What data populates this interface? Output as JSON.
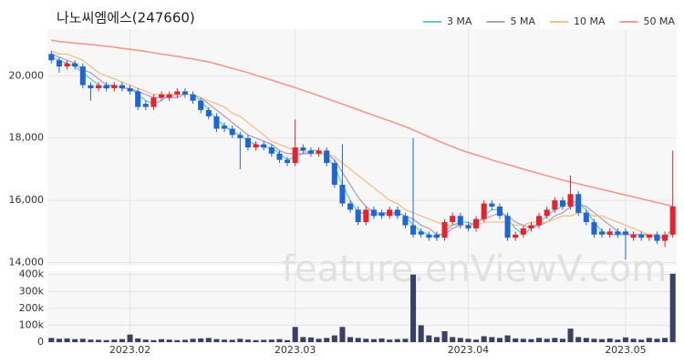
{
  "chart_data": {
    "type": "candlestick",
    "title": "나노씨엠에스(247660)",
    "watermark": "feature.enViewV.com",
    "legend": "top-right",
    "grid": true,
    "up_color": "#e8212e",
    "down_color": "#1e66d6",
    "categories": [
      null,
      null,
      null,
      null,
      null,
      null,
      null,
      null,
      null,
      null,
      "2023.02",
      null,
      null,
      null,
      null,
      null,
      null,
      null,
      null,
      null,
      null,
      null,
      null,
      null,
      null,
      null,
      null,
      null,
      null,
      null,
      null,
      "2023.03",
      null,
      null,
      null,
      null,
      null,
      null,
      null,
      null,
      null,
      null,
      null,
      null,
      null,
      null,
      null,
      null,
      null,
      null,
      null,
      null,
      null,
      "2023.04",
      null,
      null,
      null,
      null,
      null,
      null,
      null,
      null,
      null,
      null,
      null,
      null,
      null,
      null,
      null,
      null,
      null,
      null,
      null,
      "2023.05",
      null,
      null,
      null,
      null,
      null,
      null
    ],
    "open": [
      20700,
      20500,
      20300,
      20400,
      20300,
      19700,
      19600,
      19700,
      19600,
      19700,
      19600,
      19500,
      19100,
      19000,
      19300,
      19300,
      19400,
      19500,
      19400,
      19200,
      18900,
      18700,
      18400,
      18300,
      18100,
      18000,
      17700,
      17800,
      17700,
      17500,
      17300,
      17200,
      17700,
      17600,
      17500,
      17600,
      17200,
      16500,
      15900,
      15700,
      15300,
      15700,
      15600,
      15500,
      15700,
      15500,
      15200,
      15000,
      14900,
      14900,
      14800,
      15300,
      15500,
      15200,
      15100,
      15400,
      15900,
      15800,
      15500,
      14800,
      14900,
      15100,
      15200,
      15500,
      15700,
      16000,
      15800,
      16200,
      15600,
      15300,
      15000,
      14900,
      15000,
      15000,
      14800,
      14900,
      14800,
      14900,
      14700,
      14900
    ],
    "high": [
      20800,
      20600,
      20500,
      20500,
      20400,
      19800,
      19800,
      19800,
      19800,
      19800,
      19700,
      19600,
      19200,
      19400,
      19500,
      19500,
      19600,
      19600,
      19500,
      19300,
      19000,
      18800,
      18500,
      18400,
      18200,
      18100,
      17900,
      17900,
      17800,
      17600,
      17400,
      18600,
      17800,
      17700,
      17700,
      17700,
      17300,
      17800,
      16000,
      15800,
      15800,
      15800,
      15700,
      15800,
      15800,
      15600,
      18000,
      15100,
      15000,
      15000,
      15400,
      15600,
      15600,
      15300,
      15500,
      16000,
      16000,
      15900,
      15600,
      15000,
      15200,
      15300,
      15600,
      15800,
      16100,
      16100,
      16800,
      16300,
      15700,
      15400,
      15100,
      15100,
      15100,
      15100,
      15000,
      15000,
      14900,
      15000,
      15000,
      17600
    ],
    "low": [
      20400,
      20100,
      20200,
      20200,
      19600,
      19200,
      19500,
      19500,
      19500,
      19500,
      19400,
      18900,
      18900,
      18900,
      19200,
      19200,
      19300,
      19300,
      19100,
      18800,
      18600,
      18200,
      18200,
      18000,
      17000,
      17600,
      17600,
      17600,
      17400,
      17200,
      17100,
      17100,
      17500,
      17400,
      17400,
      17100,
      16400,
      15800,
      15600,
      15200,
      15200,
      15400,
      15400,
      15400,
      15400,
      15100,
      14800,
      14800,
      14700,
      14700,
      14700,
      15200,
      15100,
      15000,
      15000,
      15300,
      15700,
      15400,
      14700,
      14700,
      14800,
      15000,
      15100,
      15400,
      15600,
      15700,
      15700,
      15500,
      15200,
      14800,
      14800,
      14800,
      14800,
      14100,
      14700,
      14700,
      14700,
      14600,
      14500,
      14800
    ],
    "close": [
      20500,
      20300,
      20400,
      20300,
      19700,
      19600,
      19700,
      19600,
      19700,
      19600,
      19500,
      19000,
      19000,
      19300,
      19400,
      19400,
      19500,
      19400,
      19200,
      18900,
      18700,
      18300,
      18300,
      18100,
      18000,
      17700,
      17800,
      17700,
      17500,
      17300,
      17200,
      17700,
      17600,
      17500,
      17600,
      17200,
      16500,
      15900,
      15700,
      15300,
      15700,
      15500,
      15500,
      15700,
      15500,
      15200,
      14900,
      14900,
      14800,
      14800,
      15300,
      15500,
      15200,
      15100,
      15400,
      15900,
      15800,
      15500,
      14800,
      14900,
      15100,
      15200,
      15500,
      15700,
      16000,
      15800,
      16200,
      15600,
      15300,
      14900,
      14900,
      15000,
      14900,
      14900,
      14900,
      14800,
      14900,
      14700,
      14900,
      15800
    ],
    "ylim": [
      13900,
      21500
    ],
    "yticks": [
      {
        "value": 14000,
        "label": "14,000"
      },
      {
        "value": 16000,
        "label": "16,000"
      },
      {
        "value": 18000,
        "label": "18,000"
      },
      {
        "value": 20000,
        "label": "20,000"
      }
    ],
    "ma_series": [
      {
        "name": "3 MA",
        "color": "#5fc9cf",
        "values": [
          20600,
          20500,
          20400,
          20300,
          20100,
          19900,
          19700,
          19600,
          19700,
          19600,
          19600,
          19400,
          19200,
          19100,
          19200,
          19400,
          19400,
          19400,
          19400,
          19200,
          18900,
          18600,
          18400,
          18200,
          18100,
          17900,
          17800,
          17700,
          17700,
          17500,
          17300,
          17400,
          17500,
          17600,
          17600,
          17400,
          17100,
          16500,
          16000,
          15600,
          15600,
          15500,
          15600,
          15600,
          15600,
          15500,
          15200,
          15000,
          14900,
          14800,
          15000,
          15200,
          15300,
          15300,
          15200,
          15500,
          15700,
          15700,
          15400,
          15100,
          14900,
          15100,
          15300,
          15500,
          15700,
          15800,
          16000,
          15900,
          15700,
          15300,
          15000,
          14900,
          14900,
          14900,
          14900,
          14900,
          14900,
          14800,
          14800,
          15100
        ]
      },
      {
        "name": "5 MA",
        "color": "#b39ccc",
        "values": [
          20700,
          20600,
          20500,
          20400,
          20200,
          20100,
          19900,
          19700,
          19700,
          19600,
          19600,
          19500,
          19400,
          19300,
          19300,
          19300,
          19300,
          19400,
          19400,
          19300,
          19100,
          18900,
          18700,
          18500,
          18300,
          18100,
          18000,
          17900,
          17800,
          17600,
          17500,
          17500,
          17500,
          17500,
          17500,
          17500,
          17300,
          16900,
          16500,
          16100,
          15800,
          15600,
          15600,
          15500,
          15600,
          15500,
          15400,
          15200,
          15100,
          14900,
          14900,
          15100,
          15200,
          15200,
          15300,
          15400,
          15500,
          15600,
          15500,
          15300,
          15200,
          15100,
          15200,
          15300,
          15500,
          15600,
          15800,
          15900,
          15800,
          15600,
          15400,
          15200,
          15000,
          14900,
          14900,
          14900,
          14900,
          14800,
          14800,
          14900
        ]
      },
      {
        "name": "10 MA",
        "color": "#f0c08c",
        "values": [
          20800,
          20700,
          20700,
          20600,
          20500,
          20300,
          20100,
          20000,
          19900,
          19800,
          19700,
          19600,
          19500,
          19400,
          19400,
          19400,
          19400,
          19400,
          19400,
          19300,
          19200,
          19100,
          19000,
          18800,
          18700,
          18500,
          18300,
          18100,
          17900,
          17800,
          17700,
          17600,
          17600,
          17500,
          17500,
          17500,
          17400,
          17200,
          17000,
          16800,
          16600,
          16400,
          16200,
          16000,
          15900,
          15700,
          15600,
          15500,
          15400,
          15300,
          15200,
          15200,
          15200,
          15200,
          15200,
          15300,
          15300,
          15300,
          15300,
          15200,
          15200,
          15300,
          15300,
          15300,
          15400,
          15500,
          15500,
          15600,
          15600,
          15500,
          15500,
          15400,
          15300,
          15200,
          15100,
          15000,
          14900,
          14900,
          14800,
          14900
        ]
      },
      {
        "name": "50 MA",
        "color": "#f4998a",
        "values": [
          21150,
          21100,
          21080,
          21050,
          21030,
          21000,
          20980,
          20950,
          20920,
          20880,
          20850,
          20820,
          20780,
          20740,
          20700,
          20660,
          20620,
          20580,
          20540,
          20490,
          20450,
          20380,
          20310,
          20240,
          20170,
          20100,
          20020,
          19940,
          19860,
          19780,
          19700,
          19620,
          19530,
          19450,
          19360,
          19270,
          19180,
          19090,
          19000,
          18910,
          18820,
          18730,
          18640,
          18550,
          18460,
          18370,
          18260,
          18150,
          18040,
          17930,
          17820,
          17720,
          17620,
          17540,
          17460,
          17380,
          17300,
          17220,
          17150,
          17080,
          17000,
          16930,
          16860,
          16790,
          16720,
          16650,
          16590,
          16530,
          16470,
          16410,
          16350,
          16290,
          16230,
          16170,
          16110,
          16050,
          15990,
          15930,
          15870,
          15810
        ]
      }
    ],
    "volume": {
      "color": "#3a3f66",
      "values": [
        25000,
        20000,
        22000,
        18000,
        20000,
        15000,
        14000,
        12000,
        15000,
        18000,
        45000,
        22000,
        15000,
        12000,
        18000,
        15000,
        12000,
        14000,
        20000,
        22000,
        25000,
        18000,
        15000,
        14000,
        20000,
        15000,
        12000,
        14000,
        15000,
        18000,
        12000,
        90000,
        30000,
        28000,
        20000,
        25000,
        40000,
        90000,
        30000,
        25000,
        20000,
        18000,
        22000,
        15000,
        18000,
        20000,
        400000,
        100000,
        40000,
        30000,
        65000,
        30000,
        25000,
        20000,
        15000,
        35000,
        30000,
        25000,
        40000,
        22000,
        20000,
        18000,
        25000,
        20000,
        25000,
        20000,
        80000,
        30000,
        25000,
        20000,
        18000,
        22000,
        15000,
        28000,
        20000,
        15000,
        25000,
        20000,
        25000,
        405000
      ],
      "ylim": [
        0,
        420000
      ],
      "yticks": [
        0,
        {
          "value": 100000,
          "label": "100k"
        },
        {
          "value": 200000,
          "label": "200k"
        },
        {
          "value": 300000,
          "label": "300k"
        },
        {
          "value": 400000,
          "label": "400k"
        }
      ]
    }
  }
}
